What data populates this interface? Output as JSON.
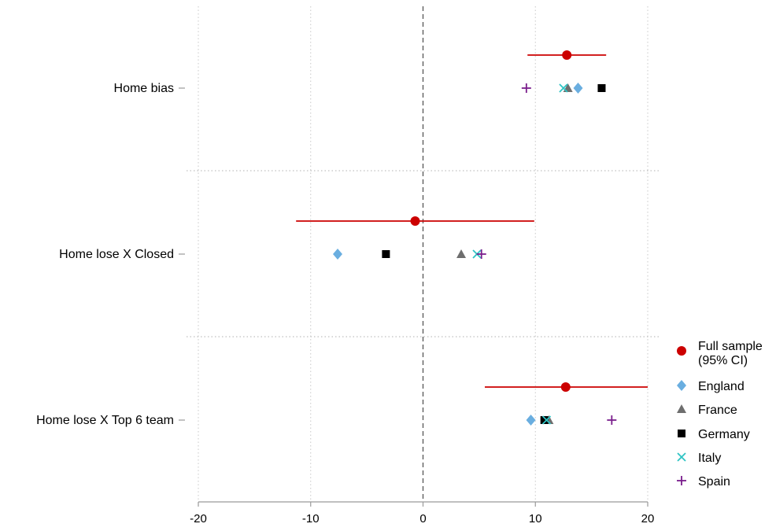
{
  "chart_data": {
    "type": "scatter",
    "title": "",
    "xlabel": "",
    "ylabel": "",
    "xlim": [
      -20,
      20
    ],
    "xticks": [
      "-20",
      "-10",
      "0",
      "10",
      "20"
    ],
    "grid": true,
    "reference_line_x": 0,
    "legend_position": "right-bottom",
    "categories": [
      "Home bias",
      "Home lose X Closed",
      "Home lose X Top 6 team"
    ],
    "series": [
      {
        "name": "Full sample (95% CI)",
        "legend_lines": [
          "Full sample",
          "(95% CI)"
        ],
        "marker": "circle",
        "color": "#cc0000",
        "values": [
          12.8,
          -0.7,
          12.7
        ],
        "ci_low": [
          9.3,
          -11.3,
          5.5
        ],
        "ci_high": [
          16.3,
          9.9,
          20.0
        ]
      },
      {
        "name": "England",
        "marker": "diamond",
        "color": "#6aaee0",
        "values": [
          13.8,
          -7.6,
          9.6
        ]
      },
      {
        "name": "France",
        "marker": "triangle",
        "color": "#6e6e6e",
        "values": [
          12.9,
          3.4,
          11.2
        ]
      },
      {
        "name": "Germany",
        "marker": "square",
        "color": "#000000",
        "values": [
          15.9,
          -3.3,
          10.8
        ]
      },
      {
        "name": "Italy",
        "marker": "x",
        "color": "#2ec4c4",
        "values": [
          12.5,
          4.8,
          11.0
        ]
      },
      {
        "name": "Spain",
        "marker": "plus",
        "color": "#7a1e8c",
        "values": [
          9.2,
          5.2,
          16.8
        ]
      }
    ]
  }
}
